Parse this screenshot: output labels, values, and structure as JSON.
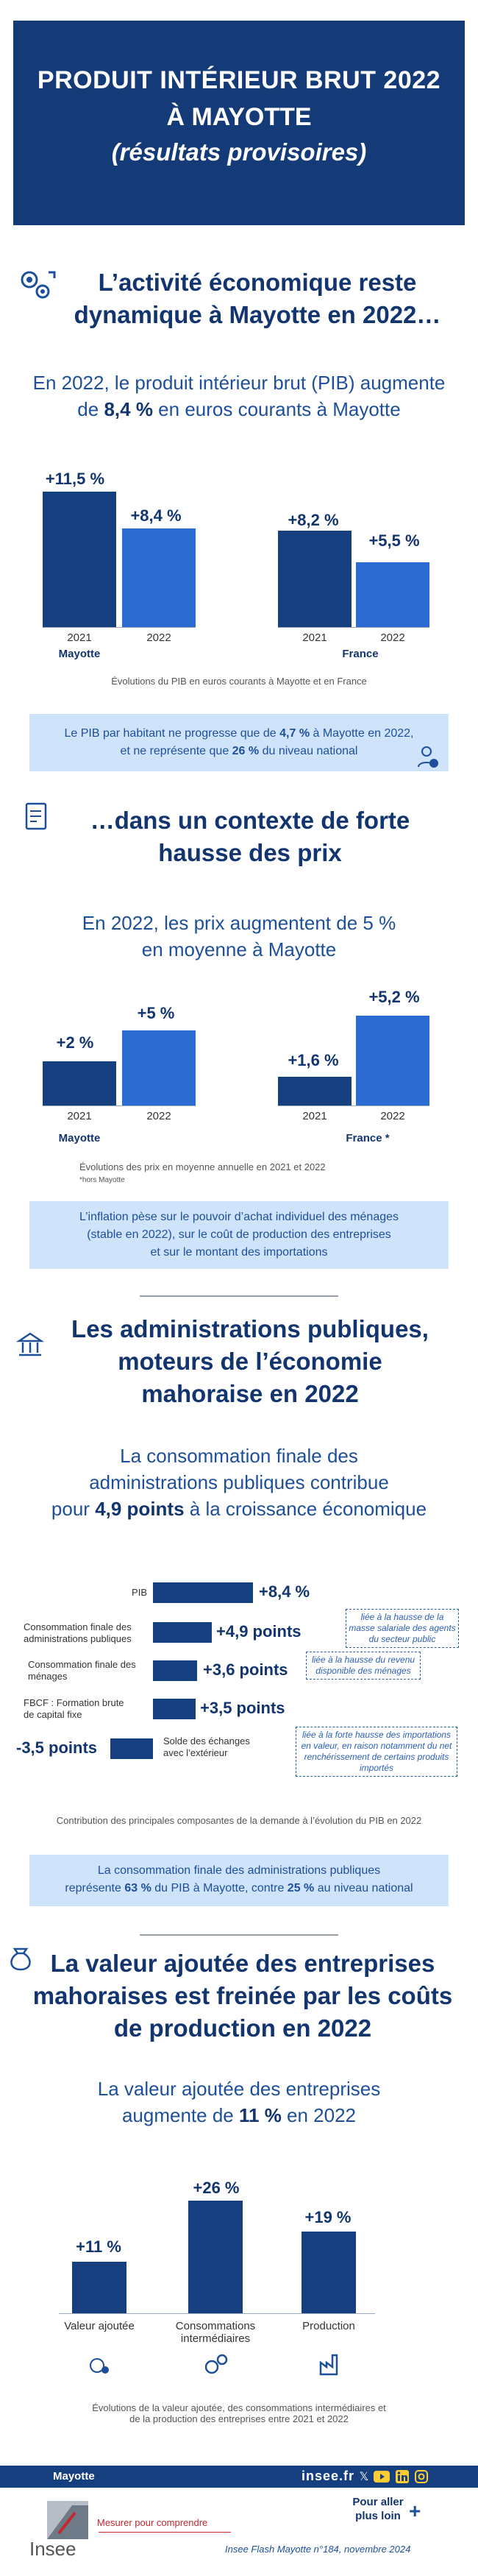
{
  "header": {
    "line1": "PRODUIT INTÉRIEUR BRUT 2022",
    "line2": "À MAYOTTE",
    "line3": "(résultats provisoires)"
  },
  "section1": {
    "title_line1": "L’activité économique reste",
    "title_line2": "dynamique à Mayotte en 2022…",
    "subtitle_line1": "En 2022, le produit intérieur brut (PIB) augmente",
    "subtitle_pre": "de ",
    "subtitle_strong": "8,4 %",
    "subtitle_post": " en euros courants à Mayotte",
    "caption": "Évolutions du PIB en euros courants à Mayotte et en France",
    "note_pre": "Le PIB par habitant ne progresse que de ",
    "note_strong1": "4,7 %",
    "note_mid": " à Mayotte en 2022,",
    "note_line2_pre": "et ne représente que ",
    "note_strong2": "26 %",
    "note_post": " du niveau national"
  },
  "chart_pib": {
    "type": "bar",
    "groups": [
      "Mayotte",
      "France"
    ],
    "categories": [
      "2021",
      "2022"
    ],
    "series": [
      {
        "group": "Mayotte",
        "values": [
          11.5,
          8.4
        ],
        "labels": [
          "+11,5 %",
          "+8,4 %"
        ]
      },
      {
        "group": "France",
        "values": [
          8.2,
          5.5
        ],
        "labels": [
          "+8,2 %",
          "+5,5 %"
        ]
      }
    ]
  },
  "section2": {
    "title_line1": "…dans un contexte de forte",
    "title_line2": "hausse des prix",
    "subtitle_line1": "En 2022, les prix augmentent de 5 %",
    "subtitle_line2": "en moyenne à Mayotte",
    "caption": "Évolutions des prix en moyenne annuelle en 2021 et 2022",
    "footnote": "*hors Mayotte",
    "note_line1": "L’inflation pèse sur le pouvoir d’achat individuel des ménages",
    "note_line2": "(stable en 2022), sur le coût de production des entreprises",
    "note_line3": "et sur le montant des importations"
  },
  "chart_prix": {
    "type": "bar",
    "groups": [
      "Mayotte",
      "France *"
    ],
    "categories": [
      "2021",
      "2022"
    ],
    "series": [
      {
        "group": "Mayotte",
        "values": [
          2,
          5
        ],
        "labels": [
          "+2 %",
          "+5 %"
        ]
      },
      {
        "group": "France *",
        "values": [
          1.6,
          5.2
        ],
        "labels": [
          "+1,6 %",
          "+5,2 %"
        ]
      }
    ]
  },
  "section3": {
    "title_line1": "Les administrations publiques,",
    "title_line2": "moteurs de l’économie",
    "title_line3": "mahoraise en 2022",
    "subtitle_line1": "La consommation finale des",
    "subtitle_line2": "administrations publiques contribue",
    "subtitle_line3_pre": "pour ",
    "subtitle_line3_strong": "4,9 points",
    "subtitle_line3_post": " à la croissance économique",
    "caption": "Contribution des principales composantes de la demande à l’évolution du PIB en 2022",
    "note_line1": "La consommation finale des administrations publiques",
    "note_line2_pre": "représente ",
    "note_strong1": "63 %",
    "note_mid": " du PIB à Mayotte, contre ",
    "note_strong2": "25 %",
    "note_post": " au niveau national",
    "box1": "liée à la hausse de la masse salariale des agents du secteur public",
    "box2": "liée à la hausse du revenu disponible des ménages",
    "box3": "liée à la forte hausse des importations en valeur, en raison notamment du net renchérissement de certains produits importés"
  },
  "chart_contrib": {
    "type": "bar",
    "orientation": "horizontal",
    "categories": [
      "PIB",
      "Consommation finale des administrations publiques",
      "Consommation finale des ménages",
      "FBCF : Formation brute de capital fixe",
      "Solde des échanges avec l’extérieur"
    ],
    "values": [
      8.4,
      4.9,
      3.6,
      3.5,
      -3.5
    ],
    "labels": [
      "+8,4  %",
      "+4,9 points",
      "+3,6 points",
      "+3,5 points",
      "-3,5 points"
    ]
  },
  "section4": {
    "title_line1": "La valeur ajoutée des entreprises",
    "title_line2": "mahoraises est freinée par les coûts",
    "title_line3": "de production en 2022",
    "subtitle_line1": "La valeur ajoutée des entreprises",
    "subtitle_pre": "augmente de ",
    "subtitle_strong": "11 %",
    "subtitle_post": " en 2022",
    "caption_line1": "Évolutions de la valeur ajoutée, des consommations intermédiaires et",
    "caption_line2": "de la production des entreprises entre 2021 et 2022"
  },
  "chart_va": {
    "type": "bar",
    "categories": [
      "Valeur ajoutée",
      "Consommations intermédiaires",
      "Production"
    ],
    "values": [
      11,
      26,
      19
    ],
    "labels": [
      "+11 %",
      "+26 %",
      "+19 %"
    ]
  },
  "footer": {
    "region": "Mayotte",
    "site": "insee.fr",
    "more_line1": "Pour aller",
    "more_line2": "plus loin",
    "brand": "Insee",
    "tagline": "Mesurer pour comprendre",
    "publication": "Insee Flash Mayotte n°184, novembre 2024"
  },
  "colors": {
    "navy": "#143a78",
    "bar_dark": "#163f7f",
    "bar_light": "#2c6bd1",
    "note_bg": "#cfe3fb"
  }
}
